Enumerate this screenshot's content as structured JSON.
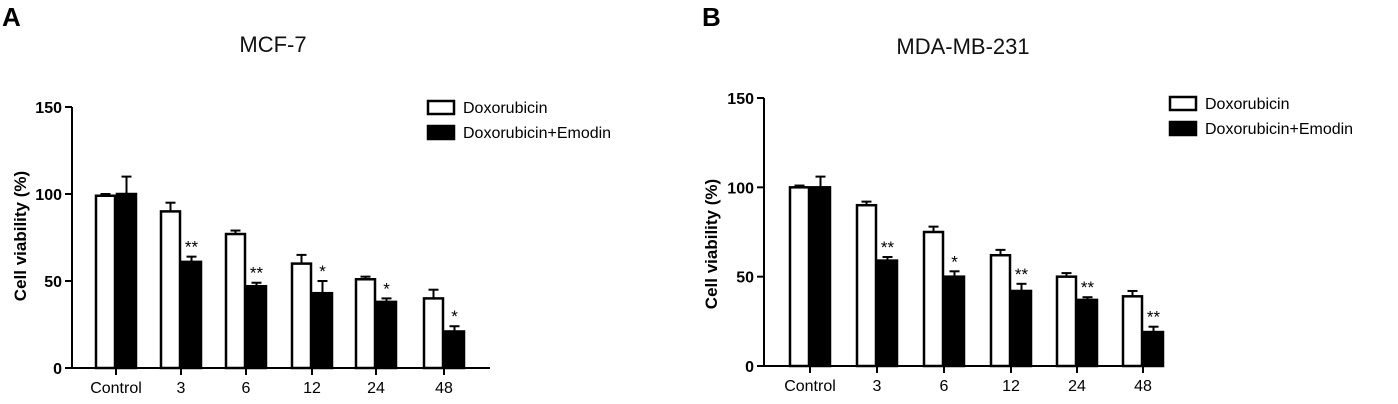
{
  "chart_data": [
    {
      "panel": "A",
      "type": "bar",
      "title": "MCF-7",
      "ylabel": "Cell viability (%)",
      "xlabel": "",
      "ylim": [
        0,
        150
      ],
      "yticks": [
        "0",
        "50",
        "100",
        "150"
      ],
      "categories": [
        "Control",
        "3",
        "6",
        "12",
        "24",
        "48"
      ],
      "legend_position": "top-right",
      "series": [
        {
          "name": "Doxorubicin",
          "fill": "#ffffff",
          "values": [
            99,
            90,
            77,
            60,
            51,
            40
          ],
          "errors": [
            1,
            5,
            2,
            5,
            1.5,
            5
          ],
          "significance": [
            "",
            "",
            "",
            "",
            "",
            ""
          ]
        },
        {
          "name": "Doxorubicin+Emodin",
          "fill": "#000000",
          "values": [
            100,
            61,
            47,
            43,
            38,
            21
          ],
          "errors": [
            10,
            3,
            2,
            7,
            2,
            3
          ],
          "significance": [
            "",
            "**",
            "**",
            "*",
            "*",
            "*"
          ]
        }
      ]
    },
    {
      "panel": "B",
      "type": "bar",
      "title": "MDA-MB-231",
      "ylabel": "Cell viability (%)",
      "xlabel": "",
      "ylim": [
        0,
        150
      ],
      "yticks": [
        "0",
        "50",
        "100",
        "150"
      ],
      "categories": [
        "Control",
        "3",
        "6",
        "12",
        "24",
        "48"
      ],
      "legend_position": "top-right",
      "series": [
        {
          "name": "Doxorubicin",
          "fill": "#ffffff",
          "values": [
            100,
            90,
            75,
            62,
            50,
            39
          ],
          "errors": [
            1,
            2,
            3,
            3,
            2,
            3
          ],
          "significance": [
            "",
            "",
            "",
            "",
            "",
            ""
          ]
        },
        {
          "name": "Doxorubicin+Emodin",
          "fill": "#000000",
          "values": [
            100,
            59,
            50,
            42,
            37,
            19
          ],
          "errors": [
            6,
            2,
            3,
            4,
            1.5,
            3
          ],
          "significance": [
            "",
            "**",
            "*",
            "**",
            "**",
            "**"
          ]
        }
      ]
    }
  ]
}
